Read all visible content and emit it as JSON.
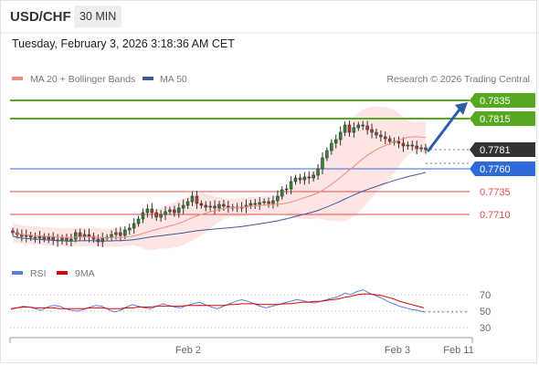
{
  "header": {
    "symbol": "USD/CHF",
    "interval": "30 MIN",
    "datetime": "Tuesday, February 3, 2026 3:18:36 AM CET"
  },
  "legend": {
    "items": [
      {
        "label": "MA 20 + Bollinger Bands",
        "color": "#f28b82"
      },
      {
        "label": "MA 50",
        "color": "#3d5a99"
      }
    ],
    "credit": "Research © 2026 Trading Central"
  },
  "rsi_legend": {
    "items": [
      {
        "label": "RSI",
        "color": "#5b7fd6"
      },
      {
        "label": "9MA",
        "color": "#e00000"
      }
    ]
  },
  "chart_data": [
    {
      "type": "candlestick",
      "price_levels": [
        {
          "label": "0.7835",
          "value": 0.7835,
          "color": "#56a820",
          "kind": "resistance"
        },
        {
          "label": "0.7815",
          "value": 0.7815,
          "color": "#56a820",
          "kind": "resistance"
        },
        {
          "label": "0.7781",
          "value": 0.7781,
          "color": "#333333",
          "kind": "last"
        },
        {
          "label": "0.7760",
          "value": 0.776,
          "color": "#2f6bd8",
          "kind": "pivot"
        },
        {
          "label": "0.7735",
          "value": 0.7735,
          "color": "#e34a4a",
          "kind": "support"
        },
        {
          "label": "0.7710",
          "value": 0.771,
          "color": "#e34a4a",
          "kind": "support"
        }
      ],
      "x_ticks": [
        "Feb 2",
        "Feb 3",
        "Feb 11"
      ],
      "indicators": [
        "MA 20 + Bollinger Bands",
        "MA 50"
      ],
      "target_arrow": {
        "from": 0.7781,
        "to": 0.7835,
        "direction": "up"
      },
      "closes": [
        0.769,
        0.7688,
        0.7686,
        0.7687,
        0.7685,
        0.7684,
        0.7686,
        0.7683,
        0.7685,
        0.7682,
        0.7681,
        0.7684,
        0.7681,
        0.7683,
        0.769,
        0.7686,
        0.7688,
        0.7686,
        0.7683,
        0.768,
        0.7684,
        0.7685,
        0.7688,
        0.769,
        0.7687,
        0.7693,
        0.7695,
        0.77,
        0.7705,
        0.7712,
        0.7716,
        0.7712,
        0.7707,
        0.771,
        0.7713,
        0.7715,
        0.7712,
        0.7717,
        0.772,
        0.7724,
        0.773,
        0.7722,
        0.772,
        0.7718,
        0.7719,
        0.7717,
        0.7721,
        0.7719,
        0.7718,
        0.7717,
        0.7718,
        0.7718,
        0.772,
        0.7722,
        0.7721,
        0.7723,
        0.7724,
        0.7722,
        0.7725,
        0.773,
        0.7737,
        0.7738,
        0.7746,
        0.775,
        0.7748,
        0.7751,
        0.775,
        0.7753,
        0.776,
        0.7772,
        0.778,
        0.7788,
        0.7792,
        0.78,
        0.7808,
        0.78,
        0.7805,
        0.7808,
        0.7807,
        0.7803,
        0.78,
        0.7797,
        0.7795,
        0.7793,
        0.779,
        0.779,
        0.7788,
        0.7785,
        0.7786,
        0.7785,
        0.7782,
        0.7783,
        0.7781
      ],
      "ylim": [
        0.766,
        0.7845
      ]
    },
    {
      "type": "line",
      "title": "RSI",
      "y_ticks": [
        70,
        50,
        30
      ],
      "ylim": [
        20,
        80
      ],
      "series": [
        {
          "name": "RSI",
          "color": "#5b7fd6",
          "values": [
            52,
            54,
            56,
            55,
            53,
            51,
            55,
            57,
            56,
            53,
            51,
            50,
            52,
            55,
            57,
            56,
            52,
            49,
            51,
            55,
            58,
            56,
            54,
            53,
            56,
            59,
            57,
            55,
            54,
            57,
            59,
            61,
            58,
            55,
            53,
            56,
            59,
            62,
            64,
            62,
            59,
            56,
            54,
            56,
            58,
            60,
            62,
            64,
            63,
            61,
            60,
            62,
            64,
            66,
            68,
            72,
            70,
            74,
            76,
            72,
            69,
            66,
            62,
            59,
            56,
            54,
            52,
            51,
            49
          ]
        },
        {
          "name": "9MA",
          "color": "#e00000",
          "values": [
            53,
            54,
            55,
            55,
            54,
            54,
            54,
            54,
            53,
            53,
            53,
            53,
            53,
            54,
            54,
            54,
            53,
            53,
            53,
            54,
            54,
            55,
            55,
            55,
            56,
            56,
            56,
            56,
            56,
            57,
            57,
            57,
            57,
            57,
            57,
            57,
            58,
            58,
            59,
            59,
            59,
            58,
            58,
            58,
            58,
            59,
            59,
            60,
            61,
            61,
            62,
            62,
            63,
            64,
            65,
            67,
            68,
            70,
            71,
            71,
            70,
            69,
            67,
            65,
            62,
            60,
            58,
            56,
            54
          ]
        }
      ]
    }
  ]
}
